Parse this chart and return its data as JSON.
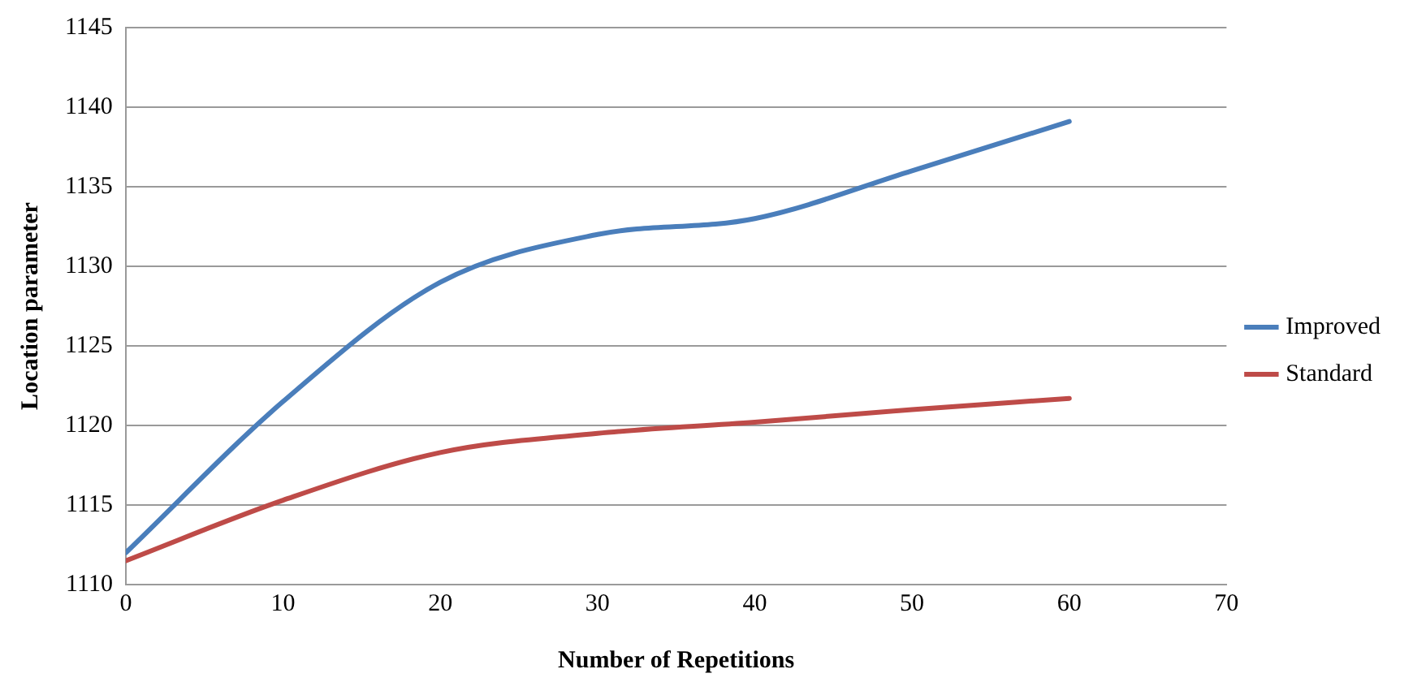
{
  "chart_data": {
    "type": "line",
    "xlabel": "Number of Repetitions",
    "ylabel": "Location parameter",
    "x": [
      0,
      10,
      20,
      30,
      40,
      50,
      60
    ],
    "series": [
      {
        "name": "Improved",
        "color": "#4a7ebb",
        "values": [
          1112,
          1121.5,
          1129,
          1132,
          1133,
          1136,
          1139.1
        ]
      },
      {
        "name": "Standard",
        "color": "#be4b48",
        "values": [
          1111.5,
          1115.3,
          1118.3,
          1119.5,
          1120.2,
          1121,
          1121.7
        ]
      }
    ],
    "xlim": [
      0,
      70
    ],
    "xticks": [
      0,
      10,
      20,
      30,
      40,
      50,
      60,
      70
    ],
    "ylim": [
      1110,
      1145
    ],
    "yticks": [
      1110,
      1115,
      1120,
      1125,
      1130,
      1135,
      1140,
      1145
    ],
    "grid": "y",
    "legend": "right",
    "marker": "none",
    "line_style": "solid"
  }
}
